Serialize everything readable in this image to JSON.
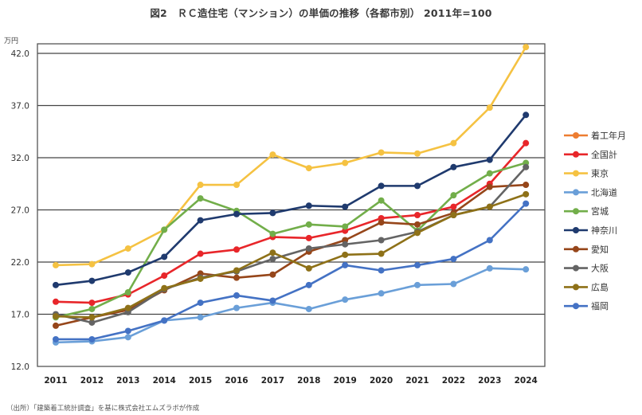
{
  "chart_data": {
    "type": "line",
    "title": "図2　ＲＣ造住宅（マンション）の単価の推移（各都市別） 2011年=100",
    "ylabel": "万円",
    "xlabel": "",
    "ylim": [
      12.0,
      42.0
    ],
    "yticks": [
      12.0,
      17.0,
      22.0,
      27.0,
      32.0,
      37.0,
      42.0
    ],
    "ytick_labels": [
      "12.0",
      "17.0",
      "22.0",
      "27.0",
      "32.0",
      "37.0",
      "42.0"
    ],
    "grid": "horizontal",
    "legend_position": "right",
    "categories": [
      "2011",
      "2012",
      "2013",
      "2014",
      "2015",
      "2016",
      "2017",
      "2018",
      "2019",
      "2020",
      "2021",
      "2022",
      "2023",
      "2024"
    ],
    "series": [
      {
        "name": "着工年月",
        "color": "#ED7D31",
        "values": []
      },
      {
        "name": "全国計",
        "color": "#E8262A",
        "values": [
          18.2,
          18.1,
          18.9,
          20.7,
          22.8,
          23.2,
          24.4,
          24.3,
          25.0,
          26.2,
          26.5,
          27.3,
          29.5,
          33.4
        ]
      },
      {
        "name": "東京",
        "color": "#F5C242",
        "values": [
          21.7,
          21.8,
          23.3,
          25.1,
          29.4,
          29.4,
          32.3,
          31.0,
          31.5,
          32.5,
          32.4,
          33.4,
          36.8,
          42.6
        ]
      },
      {
        "name": "北海道",
        "color": "#6A9FD8",
        "values": [
          14.3,
          14.4,
          14.8,
          16.4,
          16.7,
          17.6,
          18.1,
          17.5,
          18.4,
          19.0,
          19.8,
          19.9,
          21.4,
          21.3
        ]
      },
      {
        "name": "宮城",
        "color": "#72AE4A",
        "values": [
          16.7,
          17.5,
          19.1,
          25.1,
          28.1,
          26.9,
          24.7,
          25.6,
          25.4,
          27.9,
          25.0,
          28.4,
          30.5,
          31.5
        ]
      },
      {
        "name": "神奈川",
        "color": "#1F3A6E",
        "values": [
          19.8,
          20.2,
          21.0,
          22.5,
          26.0,
          26.6,
          26.7,
          27.4,
          27.3,
          29.3,
          29.3,
          31.1,
          31.8,
          36.1
        ]
      },
      {
        "name": "愛知",
        "color": "#96461A",
        "values": [
          15.9,
          16.7,
          17.4,
          19.3,
          20.9,
          20.5,
          20.8,
          23.0,
          24.1,
          25.8,
          25.6,
          26.7,
          29.2,
          29.4
        ]
      },
      {
        "name": "大阪",
        "color": "#646464",
        "values": [
          17.0,
          16.2,
          17.2,
          19.4,
          20.5,
          21.1,
          22.3,
          23.3,
          23.7,
          24.1,
          24.9,
          26.5,
          27.3,
          31.1
        ]
      },
      {
        "name": "広島",
        "color": "#8E7118",
        "values": [
          16.8,
          16.7,
          17.6,
          19.5,
          20.4,
          21.2,
          22.9,
          21.4,
          22.7,
          22.8,
          24.8,
          26.5,
          27.3,
          28.5
        ]
      },
      {
        "name": "福岡",
        "color": "#4472C4",
        "values": [
          14.6,
          14.6,
          15.4,
          16.4,
          18.1,
          18.8,
          18.3,
          19.8,
          21.7,
          21.2,
          21.7,
          22.3,
          24.1,
          27.6
        ]
      }
    ]
  },
  "page": {
    "title": "図2　ＲＣ造住宅（マンション）の単価の推移（各都市別） 2011年=100",
    "unit_label": "万円",
    "source_note": "（出所）「建築着工統計調査」を基に株式会社エムズラボが作成"
  }
}
